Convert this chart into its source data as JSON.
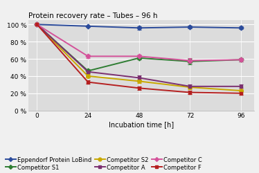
{
  "title": "Protein recovery rate – Tubes – 96 h",
  "xlabel": "Incubation time [h]",
  "x": [
    0,
    24,
    48,
    72,
    96
  ],
  "series": [
    {
      "label": "Eppendorf Protein LoBind",
      "color": "#2b4b9b",
      "marker": "D",
      "markersize": 3.5,
      "linewidth": 1.4,
      "values": [
        100,
        98,
        96,
        97,
        96
      ],
      "errors": [
        0.3,
        1.0,
        2.0,
        1.5,
        1.5
      ]
    },
    {
      "label": "Competitor S1",
      "color": "#2e7d32",
      "marker": "D",
      "markersize": 3.5,
      "linewidth": 1.4,
      "values": [
        100,
        46,
        61,
        57,
        59
      ],
      "errors": [
        0.3,
        2.0,
        2.0,
        3.0,
        2.0
      ]
    },
    {
      "label": "Competitor S2",
      "color": "#c8a800",
      "marker": "o",
      "markersize": 4.0,
      "linewidth": 1.4,
      "values": [
        100,
        40,
        34,
        27,
        23
      ],
      "errors": [
        0.3,
        2.0,
        2.0,
        2.0,
        2.0
      ]
    },
    {
      "label": "Competitor A",
      "color": "#7b3070",
      "marker": "s",
      "markersize": 3.5,
      "linewidth": 1.4,
      "values": [
        100,
        45,
        38,
        28,
        28
      ],
      "errors": [
        0.3,
        2.0,
        3.0,
        2.0,
        2.0
      ]
    },
    {
      "label": "Competitor C",
      "color": "#d4529a",
      "marker": "D",
      "markersize": 3.5,
      "linewidth": 1.4,
      "values": [
        100,
        63,
        63,
        58,
        59
      ],
      "errors": [
        0.3,
        2.0,
        2.0,
        3.0,
        2.0
      ]
    },
    {
      "label": "Competitor F",
      "color": "#b52020",
      "marker": "s",
      "markersize": 3.5,
      "linewidth": 1.4,
      "values": [
        100,
        33,
        26,
        21,
        20
      ],
      "errors": [
        0.3,
        2.0,
        2.0,
        2.0,
        2.0
      ]
    }
  ],
  "ylim": [
    0,
    105
  ],
  "yticks": [
    0,
    20,
    40,
    60,
    80,
    100
  ],
  "ytick_labels": [
    "0 %",
    "20 %",
    "40 %",
    "60 %",
    "80 %",
    "100 %"
  ],
  "xticks": [
    0,
    24,
    48,
    72,
    96
  ],
  "plot_bg_color": "#dcdcdc",
  "fig_bg_color": "#f0f0f0",
  "title_fontsize": 7.5,
  "legend_fontsize": 6.0,
  "tick_fontsize": 6.5,
  "xlabel_fontsize": 7.0,
  "legend_order": [
    0,
    1,
    2,
    3,
    4,
    5
  ]
}
